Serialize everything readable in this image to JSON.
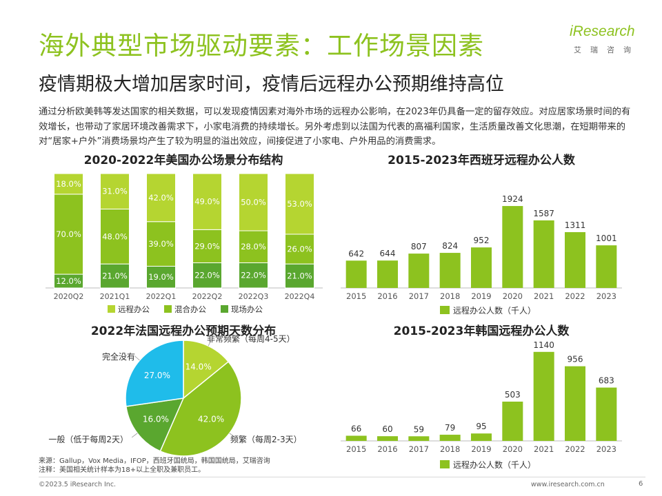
{
  "header": {
    "title": "海外典型市场驱动要素：工作场景因素",
    "subtitle": "疫情期极大增加居家时间，疫情后远程办公预期维持高位",
    "logo_text": "iResearch",
    "logo_cn": "艾瑞咨询"
  },
  "intro": "通过分析欧美韩等发达国家的相关数据，可以发现疫情因素对海外市场的远程办公影响，在2023年仍具备一定的留存效应。对应居家场景时间的有效增长，也带动了家居环境改善需求下，小家电消费的持续增长。另外考虑到以法国为代表的高福利国家，生活质量改善文化思潮，在短期带来的对“居家+户外”消费场景均产生了较为明显的溢出效应，间接促进了小家电、户外用品的消费需求。",
  "colors": {
    "accent": "#8dc21f",
    "light": "#b5d531",
    "mid": "#8dc21f",
    "dark": "#5aa72f",
    "cyan": "#1fbcea",
    "grid": "#bbbbbb"
  },
  "chart_data": [
    {
      "id": "us",
      "type": "bar",
      "stacked": true,
      "title": "2020-2022年美国办公场景分布结构",
      "categories": [
        "2020Q2",
        "2021Q1",
        "2022Q1",
        "2022Q2",
        "2022Q3",
        "2022Q4"
      ],
      "series": [
        {
          "name": "现场办公",
          "values": [
            12.0,
            21.0,
            19.0,
            22.0,
            22.0,
            21.0
          ],
          "color": "#5aa72f"
        },
        {
          "name": "混合办公",
          "values": [
            70.0,
            48.0,
            39.0,
            29.0,
            28.0,
            26.0
          ],
          "color": "#8dc21f"
        },
        {
          "name": "远程办公",
          "values": [
            18.0,
            31.0,
            42.0,
            49.0,
            50.0,
            53.0
          ],
          "color": "#b5d531"
        }
      ],
      "legend_order": [
        "远程办公",
        "混合办公",
        "现场办公"
      ],
      "value_suffix": "%",
      "ylim": [
        0,
        100
      ]
    },
    {
      "id": "es",
      "type": "bar",
      "title": "2015-2023年西班牙远程办公人数",
      "categories": [
        "2015",
        "2016",
        "2017",
        "2018",
        "2019",
        "2020",
        "2021",
        "2022",
        "2023"
      ],
      "values": [
        642,
        644,
        807,
        824,
        952,
        1924,
        1587,
        1311,
        1001
      ],
      "legend": "远程办公人数（千人）",
      "ylim": [
        0,
        2200
      ]
    },
    {
      "id": "fr",
      "type": "pie",
      "title": "2022年法国远程办公预期天数分布",
      "slices": [
        {
          "label": "非常频繁（每周4-5天）",
          "value": 14.0,
          "color": "#b5d531"
        },
        {
          "label": "频繁（每周2-3天）",
          "value": 42.0,
          "color": "#8dc21f"
        },
        {
          "label": "一般（低于每周2天）",
          "value": 16.0,
          "color": "#5aa72f"
        },
        {
          "label": "完全没有",
          "value": 27.0,
          "color": "#1fbcea"
        }
      ],
      "value_suffix": "%"
    },
    {
      "id": "kr",
      "type": "bar",
      "title": "2015-2023年韩国远程办公人数",
      "categories": [
        "2015",
        "2016",
        "2017",
        "2018",
        "2019",
        "2020",
        "2021",
        "2022",
        "2023"
      ],
      "values": [
        66,
        60,
        59,
        79,
        95,
        503,
        1140,
        956,
        683
      ],
      "legend": "远程办公人数（千人）",
      "ylim": [
        0,
        1200
      ]
    }
  ],
  "notes": {
    "source": "来源：Gallup，Vox Media，IFOP，西班牙国统局，韩国国统局，艾瑞咨询",
    "note": "注释：美国相关统计样本为18+以上全职及兼职员工。"
  },
  "footer": {
    "copyright": "©2023.5 iResearch Inc.",
    "url": "www.iresearch.com.cn",
    "page": "6"
  }
}
